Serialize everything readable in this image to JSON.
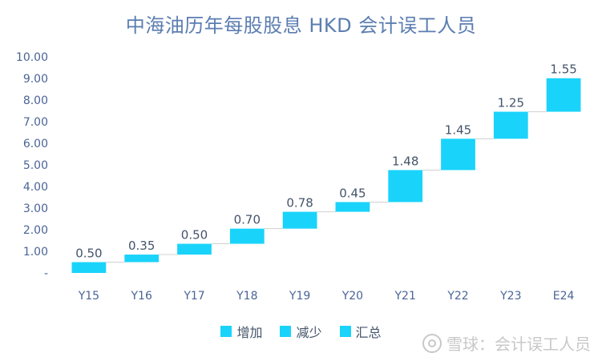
{
  "chart_data": {
    "type": "bar",
    "subtype": "waterfall",
    "title": "中海油历年每股股息 HKD 会计误工人员",
    "categories": [
      "Y15",
      "Y16",
      "Y17",
      "Y18",
      "Y19",
      "Y20",
      "Y21",
      "Y22",
      "Y23",
      "E24"
    ],
    "series": [
      {
        "name": "增加",
        "values": [
          0.5,
          0.35,
          0.5,
          0.7,
          0.78,
          0.45,
          1.48,
          1.45,
          1.25,
          1.55
        ]
      }
    ],
    "data_labels": [
      "0.50",
      "0.35",
      "0.50",
      "0.70",
      "0.78",
      "0.45",
      "1.48",
      "1.45",
      "1.25",
      "1.55"
    ],
    "y_ticks": [
      "-",
      "1.00",
      "2.00",
      "3.00",
      "4.00",
      "5.00",
      "6.00",
      "7.00",
      "8.00",
      "9.00",
      "10.00"
    ],
    "ylim": [
      0,
      10
    ],
    "legend": [
      "增加",
      "减少",
      "汇总"
    ],
    "legend_position": "bottom",
    "grid": false,
    "colors": {
      "bar": "#1ad3fb",
      "connector": "#d0d0d0",
      "title": "#5b7db1",
      "text": "#44546a"
    }
  },
  "watermark": "雪球：会计误工人员"
}
